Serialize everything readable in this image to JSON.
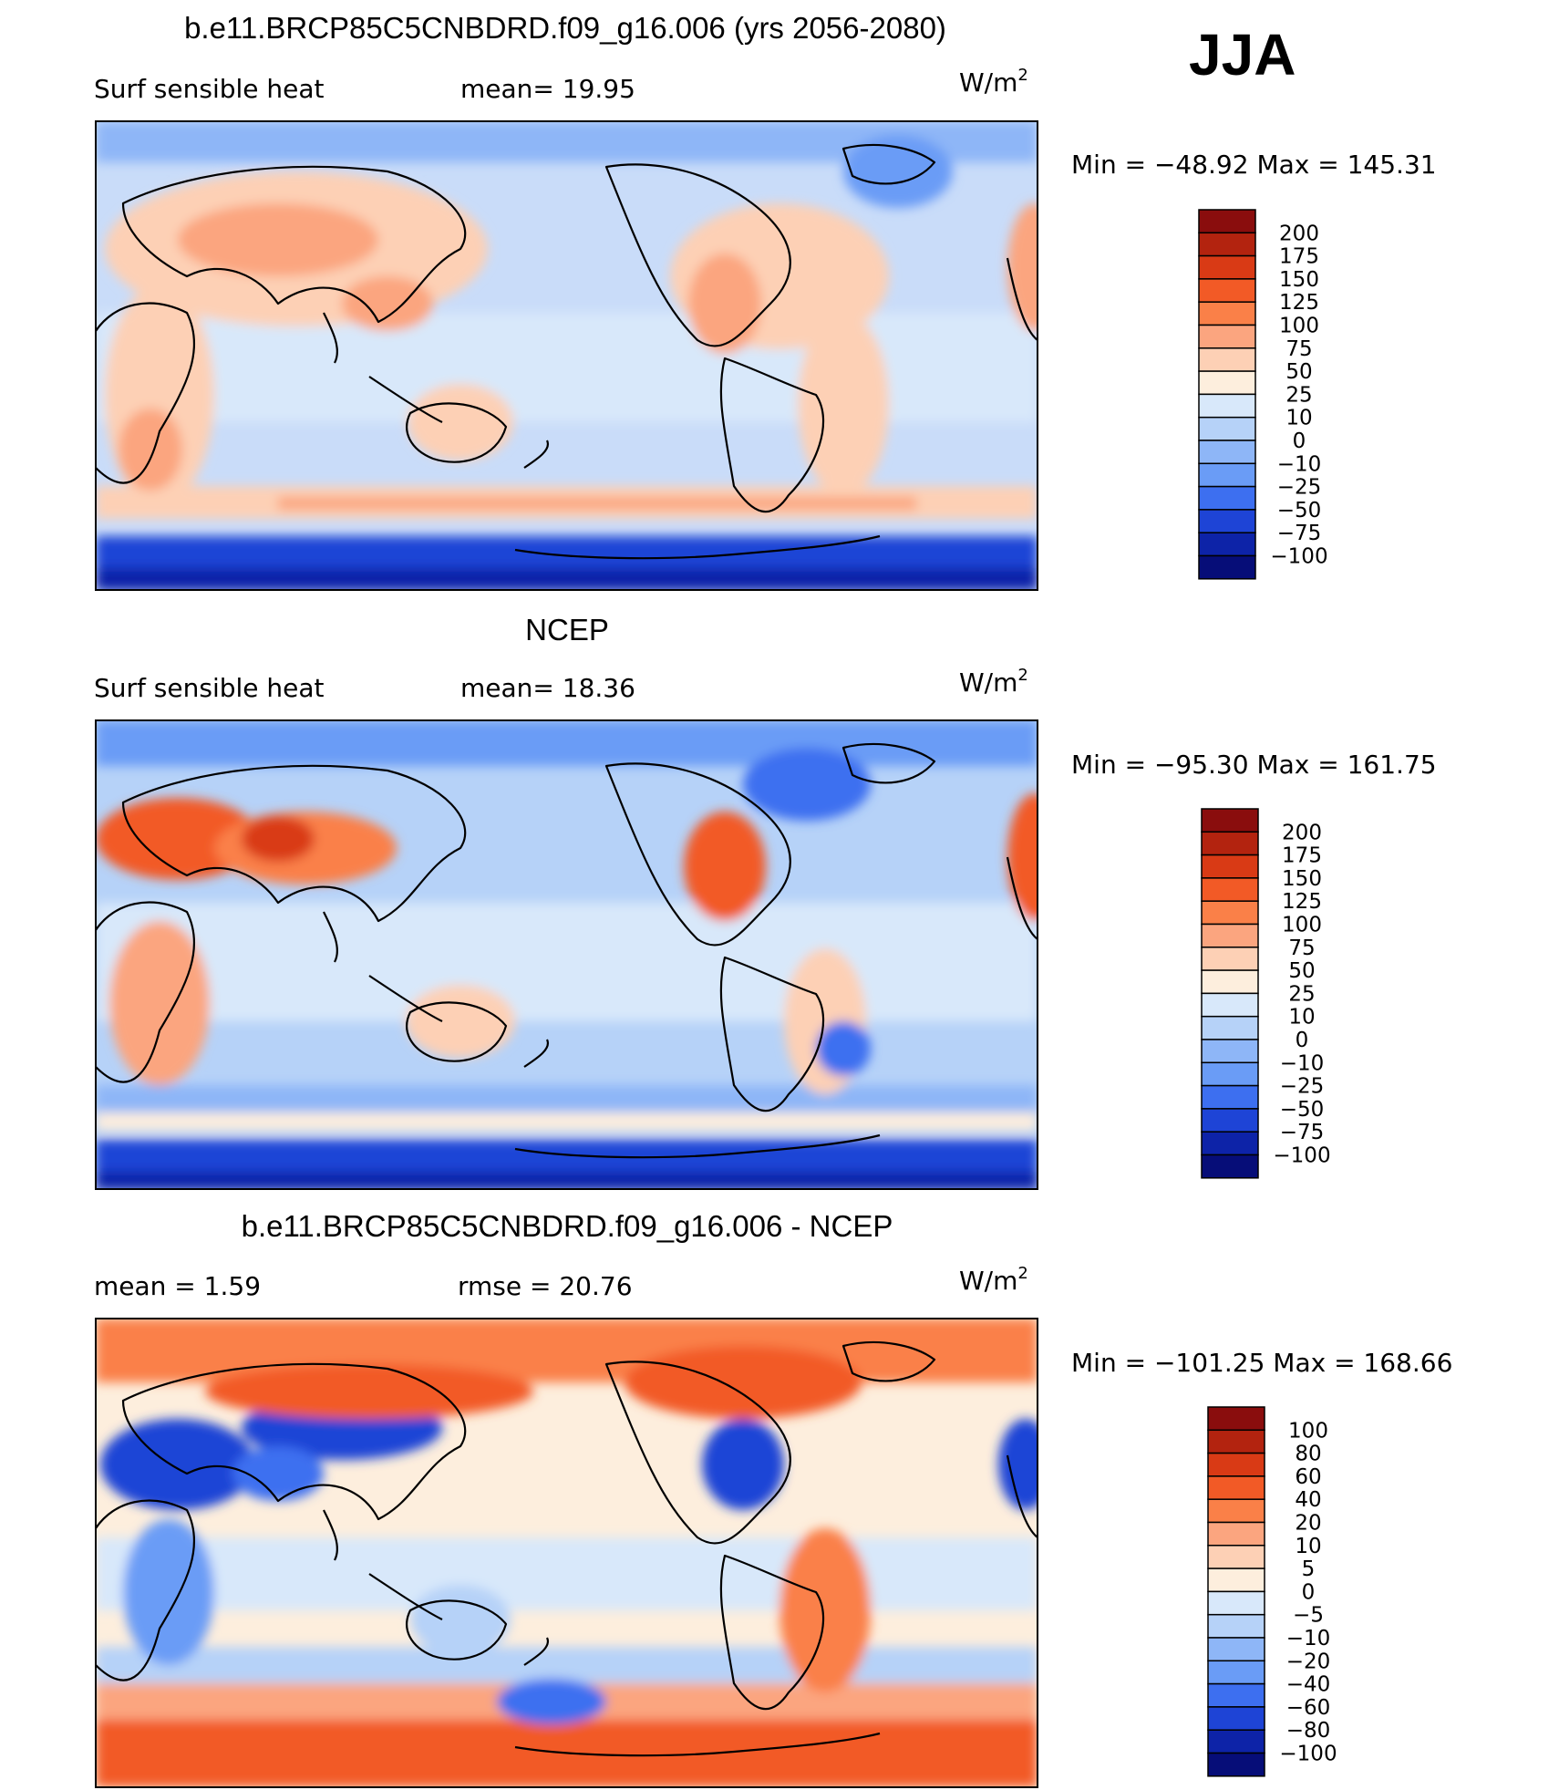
{
  "season": "JJA",
  "panels": [
    {
      "title": "b.e11.BRCP85C5CNBDRD.f09_g16.006 (yrs 2056-2080)",
      "left_label": "Surf  sensible  heat",
      "mid_label": "mean=   19.95",
      "units": "W/m",
      "units_sup": "2",
      "minmax": "Min  =  −48.92  Max  =  145.31",
      "colorbar_levels": [
        "200",
        "175",
        "150",
        "125",
        "100",
        "75",
        "50",
        "25",
        "10",
        "0",
        "−10",
        "−25",
        "−50",
        "−75",
        "−100"
      ],
      "colorbar_colors": [
        "#8a0d0d",
        "#b3230f",
        "#d93a15",
        "#f25a26",
        "#fa8048",
        "#fba57f",
        "#fdd0b5",
        "#fdeedd",
        "#d8e8fa",
        "#b6d2f8",
        "#8eb6f7",
        "#6a9cf6",
        "#3d6ff0",
        "#1e44d6",
        "#0d23a8",
        "#060d78"
      ]
    },
    {
      "title": "NCEP",
      "left_label": "Surf  sensible  heat",
      "mid_label": "mean=   18.36",
      "units": "W/m",
      "units_sup": "2",
      "minmax": "Min  =  −95.30  Max  =  161.75",
      "colorbar_levels": [
        "200",
        "175",
        "150",
        "125",
        "100",
        "75",
        "50",
        "25",
        "10",
        "0",
        "−10",
        "−25",
        "−50",
        "−75",
        "−100"
      ],
      "colorbar_colors": [
        "#8a0d0d",
        "#b3230f",
        "#d93a15",
        "#f25a26",
        "#fa8048",
        "#fba57f",
        "#fdd0b5",
        "#fdeedd",
        "#d8e8fa",
        "#b6d2f8",
        "#8eb6f7",
        "#6a9cf6",
        "#3d6ff0",
        "#1e44d6",
        "#0d23a8",
        "#060d78"
      ]
    },
    {
      "title": "b.e11.BRCP85C5CNBDRD.f09_g16.006 - NCEP",
      "left_label": "mean  =     1.59",
      "mid_label": "rmse  =    20.76",
      "units": "W/m",
      "units_sup": "2",
      "minmax": "Min  =  −101.25  Max  =  168.66",
      "colorbar_levels": [
        "100",
        "80",
        "60",
        "40",
        "20",
        "10",
        "5",
        "0",
        "−5",
        "−10",
        "−20",
        "−40",
        "−60",
        "−80",
        "−100"
      ],
      "colorbar_colors": [
        "#8a0d0d",
        "#b3230f",
        "#d93a15",
        "#f25a26",
        "#fa8048",
        "#fba57f",
        "#fdd0b5",
        "#fdeedd",
        "#d8e8fa",
        "#b6d2f8",
        "#8eb6f7",
        "#6a9cf6",
        "#3d6ff0",
        "#1e44d6",
        "#0d23a8",
        "#060d78"
      ]
    }
  ],
  "chart_data": [
    {
      "type": "heatmap",
      "title": "b.e11.BRCP85C5CNBDRD.f09_g16.006 (yrs 2056-2080)",
      "variable": "Surf  sensible  heat",
      "mean": 19.95,
      "min": -48.92,
      "max": 145.31,
      "units": "W/m2",
      "season": "JJA",
      "contour_levels": [
        -100,
        -75,
        -50,
        -25,
        -10,
        0,
        10,
        25,
        50,
        75,
        100,
        125,
        150,
        175,
        200
      ]
    },
    {
      "type": "heatmap",
      "title": "NCEP",
      "variable": "Surf  sensible  heat",
      "mean": 18.36,
      "min": -95.3,
      "max": 161.75,
      "units": "W/m2",
      "season": "JJA",
      "contour_levels": [
        -100,
        -75,
        -50,
        -25,
        -10,
        0,
        10,
        25,
        50,
        75,
        100,
        125,
        150,
        175,
        200
      ]
    },
    {
      "type": "heatmap",
      "title": "b.e11.BRCP85C5CNBDRD.f09_g16.006 - NCEP",
      "mean": 1.59,
      "rmse": 20.76,
      "min": -101.25,
      "max": 168.66,
      "units": "W/m2",
      "season": "JJA",
      "contour_levels": [
        -100,
        -80,
        -60,
        -40,
        -20,
        -10,
        -5,
        0,
        5,
        10,
        20,
        40,
        60,
        80,
        100
      ]
    }
  ]
}
